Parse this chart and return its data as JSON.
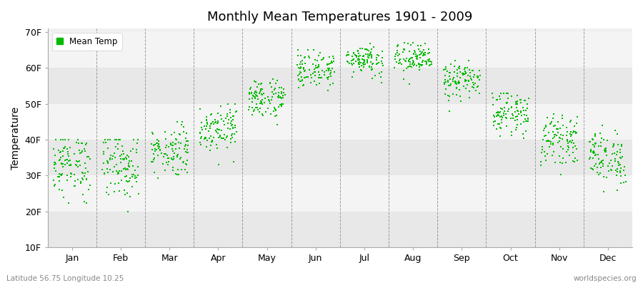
{
  "title": "Monthly Mean Temperatures 1901 - 2009",
  "ylabel": "Temperature",
  "xlabel_bottom_left": "Latitude 56.75 Longitude 10.25",
  "xlabel_bottom_right": "worldspecies.org",
  "legend_label": "Mean Temp",
  "dot_color": "#00bb00",
  "background_color": "#ffffff",
  "plot_bg_color": "#f0f0f0",
  "yticks": [
    10,
    20,
    30,
    40,
    50,
    60,
    70
  ],
  "ytick_labels": [
    "10F",
    "20F",
    "30F",
    "40F",
    "50F",
    "60F",
    "70F"
  ],
  "ylim": [
    10,
    71
  ],
  "months": [
    "Jan",
    "Feb",
    "Mar",
    "Apr",
    "May",
    "Jun",
    "Jul",
    "Aug",
    "Sep",
    "Oct",
    "Nov",
    "Dec"
  ],
  "n_years": 109,
  "month_means_F": [
    33.0,
    33.0,
    37.0,
    43.5,
    51.5,
    59.5,
    62.5,
    62.5,
    56.5,
    47.5,
    40.0,
    35.0
  ],
  "month_stds_F": [
    4.5,
    4.8,
    3.5,
    3.2,
    2.8,
    2.5,
    2.2,
    2.2,
    2.5,
    2.8,
    3.2,
    3.8
  ],
  "month_mins_F": [
    20.0,
    18.0,
    25.0,
    33.0,
    43.0,
    52.0,
    56.0,
    55.0,
    48.0,
    37.0,
    29.0,
    25.0
  ],
  "month_maxs_F": [
    40.0,
    40.0,
    45.0,
    50.0,
    57.0,
    65.0,
    68.0,
    67.0,
    62.0,
    53.0,
    48.0,
    44.0
  ]
}
